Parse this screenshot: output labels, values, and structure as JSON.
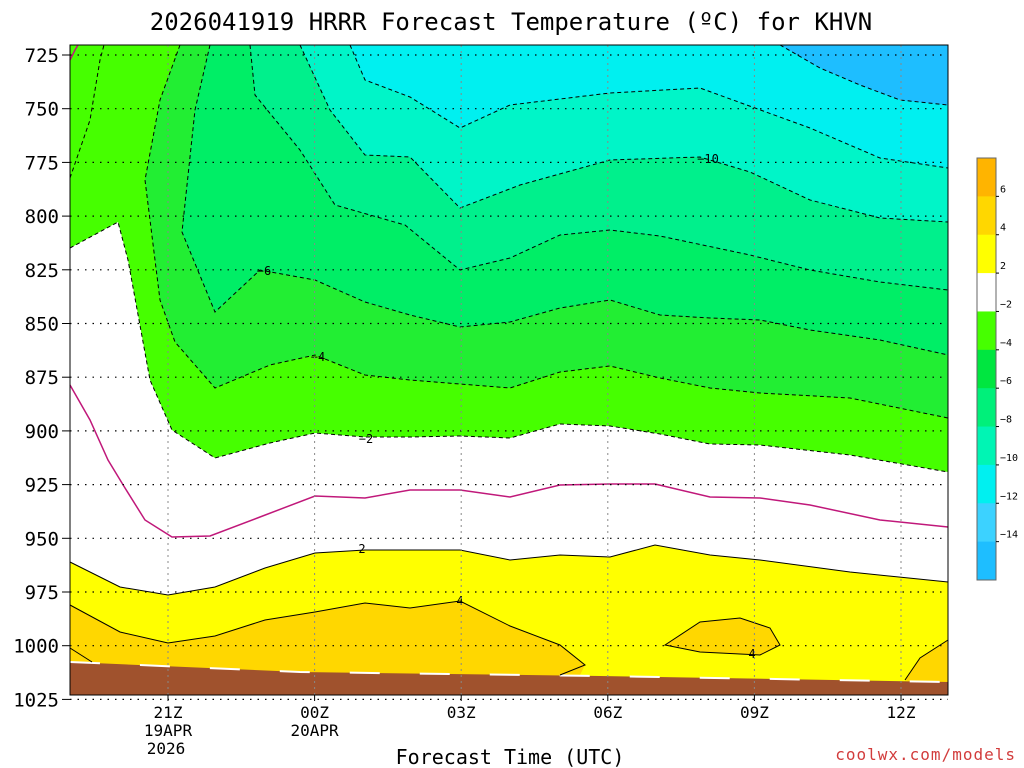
{
  "title": "2026041919 HRRR Forecast Temperature (ºC) for KHVN",
  "xlabel": "Forecast Time (UTC)",
  "credit": "coolwx.com/models",
  "chart_data": {
    "type": "heatmap",
    "title": "2026041919 HRRR Forecast Temperature (ºC) for KHVN",
    "xlabel": "Forecast Time (UTC)",
    "ylabel": "",
    "y_axis": "pressure (mb), inverted",
    "y_ticks": [
      "725",
      "750",
      "775",
      "800",
      "825",
      "850",
      "875",
      "900",
      "925",
      "950",
      "975",
      "1000",
      "1025"
    ],
    "x_ticks": [
      {
        "label": "21Z",
        "sub1": "19APR",
        "sub2": "2026"
      },
      {
        "label": "00Z",
        "sub1": "20APR",
        "sub2": ""
      },
      {
        "label": "03Z",
        "sub1": "",
        "sub2": ""
      },
      {
        "label": "06Z",
        "sub1": "",
        "sub2": ""
      },
      {
        "label": "09Z",
        "sub1": "",
        "sub2": ""
      },
      {
        "label": "12Z",
        "sub1": "",
        "sub2": ""
      }
    ],
    "grid": true,
    "colorbar": {
      "levels": [
        6,
        4,
        2,
        -2,
        -4,
        -6,
        -8,
        -10,
        -12,
        -14
      ],
      "tick_labels": [
        "6",
        "4",
        "2",
        "−2",
        "−4",
        "−6",
        "−8",
        "−10",
        "−12",
        "−14"
      ],
      "colors": [
        "#ffb400",
        "#ffd700",
        "#ffff00",
        "#ffffff",
        "#46ff00",
        "#00e640",
        "#00f07a",
        "#00f5b4",
        "#00f0f0",
        "#3cd2ff",
        "#1ebeff"
      ]
    },
    "contour_labels": [
      "−10",
      "−6",
      "−4",
      "−2",
      "2",
      "4",
      "4"
    ],
    "fill_colors": {
      "ground": "#a0522d",
      "t_gt_4": "#ffd700",
      "t_2_4": "#ffff00",
      "t_m2_2": "#ffffff",
      "t_m4_m2": "#55ff00",
      "t_m6_m4": "#22ee33",
      "t_m8_m6": "#00ee66",
      "t_m10_m8": "#00f08c",
      "t_m12_m10": "#00f5c8",
      "t_m14_m12": "#3ce8ff",
      "t_lt_m14": "#1ec0ff",
      "zero_line": "#c0187a"
    }
  }
}
